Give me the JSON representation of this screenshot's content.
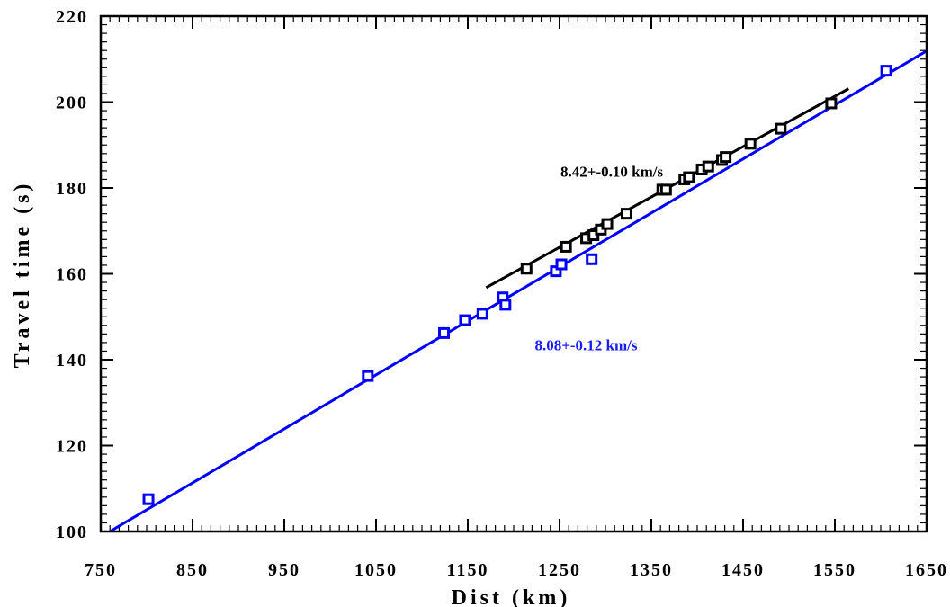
{
  "chart_data": {
    "type": "scatter",
    "xlabel": "Dist (km)",
    "ylabel": "Travel time (s)",
    "xlim": [
      750,
      1650
    ],
    "ylim": [
      100,
      220
    ],
    "xticks": [
      750,
      850,
      950,
      1050,
      1150,
      1250,
      1350,
      1450,
      1550,
      1650
    ],
    "yticks": [
      100,
      120,
      140,
      160,
      180,
      200,
      220
    ],
    "grid": false,
    "series": [
      {
        "color": "#0000ff",
        "marker": "square",
        "points": [
          [
            802,
            107.5
          ],
          [
            1041,
            136.2
          ],
          [
            1124,
            146.2
          ],
          [
            1147,
            149.2
          ],
          [
            1166,
            150.7
          ],
          [
            1188,
            154.5
          ],
          [
            1191,
            152.8
          ],
          [
            1246,
            160.6
          ],
          [
            1252,
            162.2
          ],
          [
            1285,
            163.4
          ],
          [
            1606,
            207.3
          ]
        ],
        "fit_line": {
          "x": [
            760,
            1650
          ],
          "y": [
            100.0,
            211.9
          ]
        }
      },
      {
        "color": "#000000",
        "marker": "square",
        "points": [
          [
            1214,
            161.2
          ],
          [
            1257,
            166.3
          ],
          [
            1279,
            168.3
          ],
          [
            1287,
            169.0
          ],
          [
            1295,
            170.3
          ],
          [
            1302,
            171.6
          ],
          [
            1323,
            174.0
          ],
          [
            1362,
            179.6
          ],
          [
            1366,
            179.6
          ],
          [
            1386,
            182.0
          ],
          [
            1391,
            182.5
          ],
          [
            1405,
            184.3
          ],
          [
            1412,
            185.0
          ],
          [
            1427,
            186.5
          ],
          [
            1431,
            187.2
          ],
          [
            1458,
            190.3
          ],
          [
            1491,
            193.8
          ],
          [
            1546,
            199.7
          ]
        ],
        "fit_line": {
          "x": [
            1170,
            1565
          ],
          "y": [
            156.8,
            203.1
          ]
        }
      }
    ],
    "annotations": [
      {
        "text": "8.42+-0.10 km/s",
        "color": "#000000",
        "x": 1251,
        "y": 182.6
      },
      {
        "text": "8.08+-0.12 km/s",
        "color": "#1a1aff",
        "x": 1223,
        "y": 142.2
      }
    ]
  }
}
